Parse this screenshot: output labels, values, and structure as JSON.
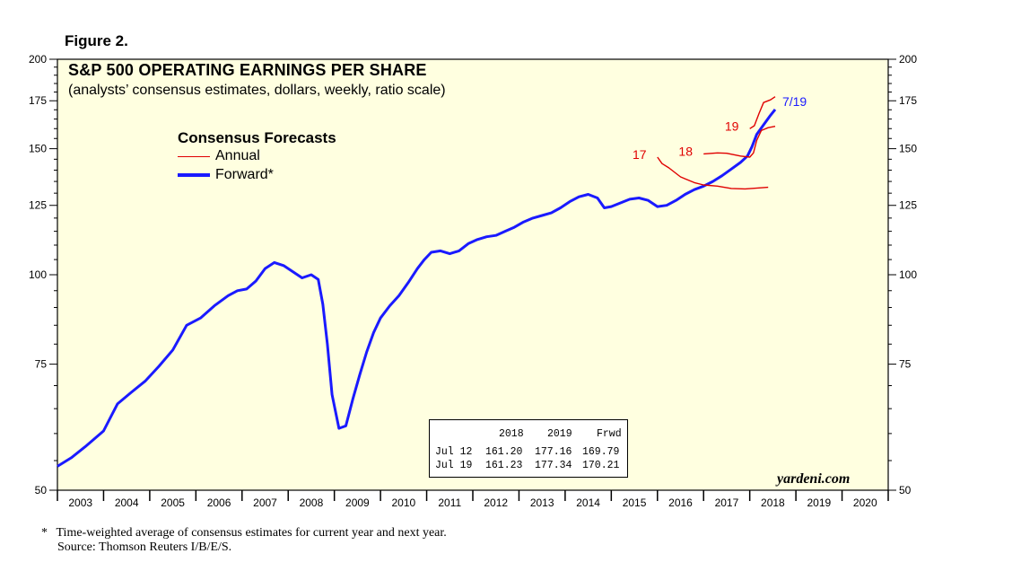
{
  "figure_label": "Figure 2.",
  "chart_data": {
    "type": "line",
    "title": "S&P 500 OPERATING EARNINGS PER SHARE",
    "subtitle": "(analysts’ consensus estimates, dollars, weekly, ratio scale)",
    "yscale": "log",
    "ylim": [
      50,
      200
    ],
    "yticks": [
      50,
      75,
      100,
      125,
      150,
      175,
      200
    ],
    "xlim": [
      2003.0,
      2021.0
    ],
    "x_tick_labels": [
      "2003",
      "2004",
      "2005",
      "2006",
      "2007",
      "2008",
      "2009",
      "2010",
      "2011",
      "2012",
      "2013",
      "2014",
      "2015",
      "2016",
      "2017",
      "2018",
      "2019",
      "2020"
    ],
    "legend": {
      "title": "Consensus Forecasts",
      "entries": [
        {
          "name": "Annual",
          "color": "#e00000"
        },
        {
          "name": "Forward*",
          "color": "#1a1aff"
        }
      ]
    },
    "series": [
      {
        "name": "Forward",
        "color": "#1a1aff",
        "points": [
          [
            2003.0,
            54
          ],
          [
            2003.3,
            55.5
          ],
          [
            2003.6,
            57.5
          ],
          [
            2004.0,
            60.5
          ],
          [
            2004.3,
            66
          ],
          [
            2004.6,
            68.5
          ],
          [
            2004.9,
            71
          ],
          [
            2005.2,
            74.5
          ],
          [
            2005.5,
            78.5
          ],
          [
            2005.8,
            85
          ],
          [
            2006.1,
            87
          ],
          [
            2006.4,
            90.5
          ],
          [
            2006.7,
            93.5
          ],
          [
            2006.9,
            95
          ],
          [
            2007.1,
            95.5
          ],
          [
            2007.3,
            98
          ],
          [
            2007.5,
            102
          ],
          [
            2007.7,
            104
          ],
          [
            2007.9,
            103
          ],
          [
            2008.1,
            101
          ],
          [
            2008.3,
            99
          ],
          [
            2008.5,
            100
          ],
          [
            2008.65,
            98.5
          ],
          [
            2008.75,
            91
          ],
          [
            2008.85,
            80
          ],
          [
            2008.95,
            68
          ],
          [
            2009.1,
            61
          ],
          [
            2009.25,
            61.5
          ],
          [
            2009.4,
            67
          ],
          [
            2009.55,
            72.5
          ],
          [
            2009.7,
            78
          ],
          [
            2009.85,
            83
          ],
          [
            2010.0,
            87
          ],
          [
            2010.2,
            90.5
          ],
          [
            2010.4,
            93.5
          ],
          [
            2010.6,
            97.5
          ],
          [
            2010.8,
            102
          ],
          [
            2010.95,
            105
          ],
          [
            2011.1,
            107.5
          ],
          [
            2011.3,
            108
          ],
          [
            2011.5,
            107
          ],
          [
            2011.7,
            108
          ],
          [
            2011.9,
            110.5
          ],
          [
            2012.1,
            112
          ],
          [
            2012.3,
            113
          ],
          [
            2012.5,
            113.5
          ],
          [
            2012.7,
            115
          ],
          [
            2012.9,
            116.5
          ],
          [
            2013.1,
            118.5
          ],
          [
            2013.3,
            120
          ],
          [
            2013.5,
            121
          ],
          [
            2013.7,
            122
          ],
          [
            2013.9,
            124
          ],
          [
            2014.1,
            126.5
          ],
          [
            2014.3,
            128.5
          ],
          [
            2014.5,
            129.5
          ],
          [
            2014.7,
            128
          ],
          [
            2014.85,
            124
          ],
          [
            2015.0,
            124.5
          ],
          [
            2015.2,
            126
          ],
          [
            2015.4,
            127.5
          ],
          [
            2015.6,
            128
          ],
          [
            2015.8,
            127
          ],
          [
            2016.0,
            124.5
          ],
          [
            2016.2,
            125
          ],
          [
            2016.4,
            127
          ],
          [
            2016.6,
            129.5
          ],
          [
            2016.8,
            131.5
          ],
          [
            2017.0,
            133
          ],
          [
            2017.2,
            135
          ],
          [
            2017.4,
            137.5
          ],
          [
            2017.6,
            140.5
          ],
          [
            2017.8,
            143.5
          ],
          [
            2017.95,
            146.5
          ],
          [
            2018.05,
            151
          ],
          [
            2018.15,
            157
          ],
          [
            2018.3,
            162
          ],
          [
            2018.45,
            167
          ],
          [
            2018.55,
            170.2
          ]
        ]
      },
      {
        "name": "2017 annual",
        "label": "17",
        "color": "#e00000",
        "points": [
          [
            2016.0,
            146
          ],
          [
            2016.1,
            143
          ],
          [
            2016.25,
            141
          ],
          [
            2016.5,
            137
          ],
          [
            2016.8,
            134.5
          ],
          [
            2017.0,
            133.5
          ],
          [
            2017.3,
            133
          ],
          [
            2017.6,
            132
          ],
          [
            2017.9,
            131.8
          ],
          [
            2018.2,
            132.2
          ],
          [
            2018.4,
            132.5
          ]
        ]
      },
      {
        "name": "2018 annual",
        "label": "18",
        "color": "#e00000",
        "points": [
          [
            2017.0,
            147.5
          ],
          [
            2017.3,
            148
          ],
          [
            2017.5,
            147.8
          ],
          [
            2017.8,
            146.5
          ],
          [
            2018.0,
            146
          ],
          [
            2018.08,
            148
          ],
          [
            2018.15,
            154
          ],
          [
            2018.25,
            159
          ],
          [
            2018.4,
            160.5
          ],
          [
            2018.55,
            161.2
          ]
        ]
      },
      {
        "name": "2019 annual",
        "label": "19",
        "color": "#e00000",
        "points": [
          [
            2018.0,
            160
          ],
          [
            2018.1,
            161.5
          ],
          [
            2018.2,
            168
          ],
          [
            2018.3,
            174
          ],
          [
            2018.45,
            175.5
          ],
          [
            2018.55,
            177.3
          ]
        ]
      }
    ],
    "end_label": "7/19",
    "annotation_table": {
      "header": [
        "",
        "2018",
        "2019",
        "Frwd"
      ],
      "rows": [
        [
          "Jul 12",
          "161.20",
          "177.16",
          "169.79"
        ],
        [
          "Jul 19",
          "161.23",
          "177.34",
          "170.21"
        ]
      ]
    }
  },
  "footnote_mark": "*",
  "footnote": "Time-weighted average of consensus estimates for current year and next year.",
  "source": "Source: Thomson Reuters I/B/E/S.",
  "brand": "yardeni.com"
}
